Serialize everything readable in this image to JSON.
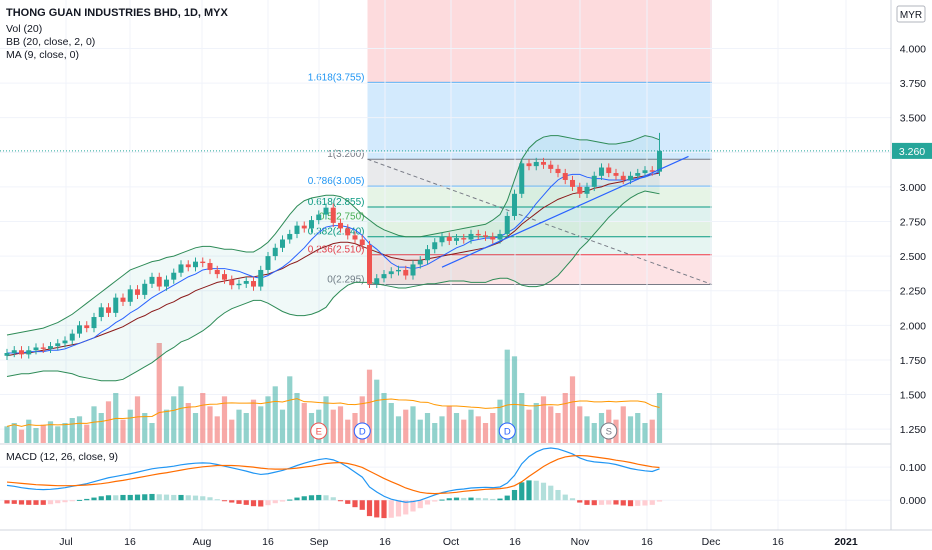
{
  "legend": {
    "title": "THONG GUAN INDUSTRIES BHD, 1D, MYX",
    "vol": "Vol (20)",
    "bb": "BB (20, close, 2, 0)",
    "ma": "MA (9, close, 0)",
    "macd": "MACD (12, 26, close, 9)"
  },
  "currency": "MYR",
  "last_price_label": "3.260",
  "colors": {
    "up": "#26a69a",
    "down": "#ef5350",
    "bb": "#2e8b57",
    "ma": "#2962ff",
    "macd_line": "#2196f3",
    "signal_line": "#ff6d00",
    "price_line": "#26a69a"
  },
  "chart_data": [
    {
      "type": "candlestick",
      "name": "price",
      "x_ticks": [
        "Jul",
        "16",
        "Aug",
        "16",
        "Sep",
        "16",
        "Oct",
        "16",
        "Nov",
        "16",
        "Dec",
        "16",
        "2021"
      ],
      "y_ticks": [
        "4.000",
        "3.750",
        "3.500",
        "3.250",
        "3.000",
        "2.750",
        "2.500",
        "2.250",
        "2.000",
        "1.750",
        "1.500",
        "1.250"
      ],
      "ylim": [
        1.15,
        4.35
      ],
      "last_price": 3.26,
      "closes": [
        1.8,
        1.82,
        1.79,
        1.82,
        1.84,
        1.83,
        1.85,
        1.87,
        1.89,
        1.94,
        2.0,
        1.98,
        2.06,
        2.13,
        2.09,
        2.2,
        2.17,
        2.26,
        2.22,
        2.3,
        2.35,
        2.28,
        2.33,
        2.38,
        2.44,
        2.42,
        2.46,
        2.45,
        2.4,
        2.37,
        2.33,
        2.29,
        2.3,
        2.32,
        2.28,
        2.4,
        2.5,
        2.56,
        2.62,
        2.66,
        2.72,
        2.7,
        2.76,
        2.8,
        2.85,
        2.74,
        2.7,
        2.65,
        2.62,
        2.58,
        2.3,
        2.34,
        2.37,
        2.39,
        2.4,
        2.36,
        2.44,
        2.47,
        2.55,
        2.6,
        2.64,
        2.61,
        2.63,
        2.62,
        2.66,
        2.65,
        2.64,
        2.62,
        2.66,
        2.79,
        2.95,
        3.17,
        3.15,
        3.18,
        3.16,
        3.13,
        3.1,
        3.05,
        3.0,
        2.95,
        3.0,
        3.08,
        3.14,
        3.1,
        3.08,
        3.05,
        3.08,
        3.1,
        3.12,
        3.11,
        3.26
      ],
      "opens": [
        1.78,
        1.8,
        1.82,
        1.79,
        1.82,
        1.84,
        1.83,
        1.85,
        1.87,
        1.89,
        1.94,
        2.0,
        1.98,
        2.06,
        2.13,
        2.09,
        2.2,
        2.17,
        2.26,
        2.22,
        2.3,
        2.35,
        2.28,
        2.33,
        2.38,
        2.44,
        2.42,
        2.46,
        2.45,
        2.4,
        2.37,
        2.33,
        2.29,
        2.3,
        2.32,
        2.28,
        2.4,
        2.5,
        2.56,
        2.62,
        2.66,
        2.72,
        2.7,
        2.76,
        2.8,
        2.85,
        2.74,
        2.7,
        2.65,
        2.62,
        2.58,
        2.3,
        2.34,
        2.37,
        2.39,
        2.4,
        2.36,
        2.44,
        2.47,
        2.55,
        2.6,
        2.64,
        2.61,
        2.63,
        2.62,
        2.66,
        2.65,
        2.64,
        2.62,
        2.66,
        2.79,
        2.95,
        3.17,
        3.15,
        3.18,
        3.16,
        3.13,
        3.1,
        3.05,
        3.0,
        2.95,
        3.0,
        3.08,
        3.14,
        3.1,
        3.08,
        3.05,
        3.08,
        3.1,
        3.12,
        3.11
      ],
      "bb_upper": [
        1.93,
        1.94,
        1.95,
        1.96,
        1.97,
        1.98,
        2.0,
        2.02,
        2.05,
        2.08,
        2.12,
        2.16,
        2.2,
        2.24,
        2.28,
        2.32,
        2.36,
        2.4,
        2.42,
        2.44,
        2.46,
        2.47,
        2.49,
        2.5,
        2.52,
        2.54,
        2.56,
        2.57,
        2.57,
        2.56,
        2.55,
        2.55,
        2.54,
        2.53,
        2.53,
        2.56,
        2.6,
        2.66,
        2.73,
        2.8,
        2.86,
        2.9,
        2.92,
        2.93,
        2.94,
        2.94,
        2.93,
        2.9,
        2.85,
        2.8,
        2.76,
        2.72,
        2.69,
        2.67,
        2.65,
        2.64,
        2.64,
        2.64,
        2.65,
        2.66,
        2.67,
        2.68,
        2.69,
        2.7,
        2.71,
        2.72,
        2.73,
        2.76,
        2.8,
        2.9,
        3.05,
        3.2,
        3.28,
        3.33,
        3.36,
        3.37,
        3.37,
        3.36,
        3.35,
        3.34,
        3.34,
        3.33,
        3.32,
        3.31,
        3.31,
        3.32,
        3.33,
        3.35,
        3.37,
        3.36,
        3.34
      ],
      "bb_mid": [
        1.78,
        1.79,
        1.8,
        1.8,
        1.81,
        1.82,
        1.83,
        1.84,
        1.85,
        1.86,
        1.87,
        1.89,
        1.91,
        1.93,
        1.95,
        1.97,
        1.99,
        2.02,
        2.05,
        2.07,
        2.1,
        2.12,
        2.15,
        2.17,
        2.2,
        2.22,
        2.25,
        2.27,
        2.29,
        2.31,
        2.32,
        2.33,
        2.34,
        2.35,
        2.35,
        2.36,
        2.37,
        2.39,
        2.41,
        2.44,
        2.46,
        2.49,
        2.52,
        2.55,
        2.57,
        2.59,
        2.6,
        2.6,
        2.59,
        2.57,
        2.55,
        2.53,
        2.51,
        2.49,
        2.48,
        2.47,
        2.47,
        2.47,
        2.48,
        2.49,
        2.5,
        2.51,
        2.52,
        2.53,
        2.54,
        2.55,
        2.56,
        2.58,
        2.6,
        2.64,
        2.68,
        2.73,
        2.77,
        2.81,
        2.85,
        2.88,
        2.91,
        2.93,
        2.95,
        2.96,
        2.97,
        2.99,
        3.0,
        3.02,
        3.03,
        3.04,
        3.06,
        3.07,
        3.08,
        3.09,
        3.1
      ],
      "bb_lower": [
        1.63,
        1.64,
        1.65,
        1.65,
        1.66,
        1.67,
        1.67,
        1.67,
        1.66,
        1.65,
        1.63,
        1.62,
        1.61,
        1.6,
        1.6,
        1.6,
        1.61,
        1.64,
        1.67,
        1.7,
        1.73,
        1.77,
        1.81,
        1.84,
        1.88,
        1.9,
        1.93,
        1.96,
        2.0,
        2.05,
        2.09,
        2.12,
        2.14,
        2.16,
        2.18,
        2.18,
        2.16,
        2.13,
        2.1,
        2.08,
        2.07,
        2.07,
        2.08,
        2.1,
        2.13,
        2.2,
        2.25,
        2.29,
        2.31,
        2.31,
        2.31,
        2.3,
        2.29,
        2.28,
        2.27,
        2.27,
        2.28,
        2.29,
        2.3,
        2.3,
        2.31,
        2.32,
        2.32,
        2.32,
        2.31,
        2.31,
        2.31,
        2.33,
        2.34,
        2.34,
        2.32,
        2.29,
        2.28,
        2.28,
        2.29,
        2.32,
        2.36,
        2.42,
        2.48,
        2.55,
        2.6,
        2.66,
        2.72,
        2.78,
        2.83,
        2.88,
        2.92,
        2.95,
        2.97,
        2.96,
        2.95
      ],
      "ma9": [
        1.8,
        1.8,
        1.8,
        1.81,
        1.81,
        1.81,
        1.82,
        1.82,
        1.83,
        1.85,
        1.87,
        1.89,
        1.91,
        1.95,
        1.98,
        2.02,
        2.05,
        2.09,
        2.12,
        2.16,
        2.2,
        2.23,
        2.26,
        2.29,
        2.32,
        2.35,
        2.37,
        2.4,
        2.41,
        2.41,
        2.41,
        2.4,
        2.39,
        2.37,
        2.35,
        2.34,
        2.36,
        2.39,
        2.42,
        2.46,
        2.51,
        2.56,
        2.62,
        2.67,
        2.71,
        2.72,
        2.72,
        2.71,
        2.69,
        2.65,
        2.59,
        2.55,
        2.5,
        2.45,
        2.42,
        2.42,
        2.41,
        2.42,
        2.44,
        2.47,
        2.5,
        2.53,
        2.56,
        2.58,
        2.61,
        2.62,
        2.63,
        2.63,
        2.64,
        2.67,
        2.7,
        2.75,
        2.81,
        2.88,
        2.94,
        3.0,
        3.05,
        3.08,
        3.09,
        3.09,
        3.07,
        3.06,
        3.06,
        3.05,
        3.05,
        3.05,
        3.05,
        3.06,
        3.07,
        3.09,
        3.11
      ],
      "volume": [
        10,
        12,
        8,
        14,
        9,
        11,
        13,
        10,
        12,
        15,
        16,
        11,
        22,
        18,
        25,
        30,
        14,
        20,
        28,
        18,
        12,
        60,
        20,
        28,
        34,
        24,
        18,
        30,
        22,
        16,
        28,
        14,
        20,
        18,
        26,
        22,
        28,
        34,
        20,
        40,
        30,
        24,
        18,
        20,
        28,
        20,
        22,
        14,
        18,
        28,
        44,
        38,
        30,
        24,
        16,
        20,
        22,
        14,
        18,
        12,
        16,
        22,
        18,
        14,
        20,
        16,
        12,
        18,
        26,
        56,
        52,
        30,
        20,
        24,
        28,
        22,
        18,
        30,
        40,
        22,
        16,
        12,
        18,
        20,
        14,
        22,
        16,
        18,
        12,
        14,
        30
      ],
      "fib_levels": [
        {
          "ratio": 1.618,
          "value": 3.755,
          "label": "1.618(3.755)"
        },
        {
          "ratio": 1,
          "value": 3.2,
          "label": "1(3.200)"
        },
        {
          "ratio": 0.786,
          "value": 3.005,
          "label": "0.786(3.005)"
        },
        {
          "ratio": 0.618,
          "value": 2.855,
          "label": "0.618(2.855)"
        },
        {
          "ratio": 0.5,
          "value": 2.75,
          "label": "0.5(2.750)"
        },
        {
          "ratio": 0.382,
          "value": 2.64,
          "label": "0.382(2.640)"
        },
        {
          "ratio": 0.236,
          "value": 2.51,
          "label": "0.236(2.510)"
        },
        {
          "ratio": 0,
          "value": 2.295,
          "label": "0(2.295)"
        }
      ],
      "events": [
        {
          "bar": 43,
          "label": "E"
        },
        {
          "bar": 49,
          "label": "D"
        },
        {
          "bar": 69,
          "label": "D"
        },
        {
          "bar": 83,
          "label": "S"
        }
      ]
    },
    {
      "type": "macd",
      "name": "MACD (12, 26, close, 9)",
      "y_ticks": [
        "0.100",
        "0.000"
      ],
      "ylim": [
        -0.09,
        0.17
      ],
      "macd": [
        0.045,
        0.042,
        0.038,
        0.035,
        0.033,
        0.032,
        0.033,
        0.035,
        0.038,
        0.042,
        0.046,
        0.05,
        0.056,
        0.062,
        0.068,
        0.072,
        0.076,
        0.08,
        0.085,
        0.09,
        0.095,
        0.098,
        0.1,
        0.103,
        0.107,
        0.11,
        0.112,
        0.113,
        0.112,
        0.108,
        0.103,
        0.098,
        0.093,
        0.088,
        0.082,
        0.078,
        0.08,
        0.085,
        0.09,
        0.097,
        0.105,
        0.112,
        0.118,
        0.123,
        0.126,
        0.122,
        0.113,
        0.1,
        0.085,
        0.07,
        0.04,
        0.025,
        0.012,
        0.003,
        -0.002,
        -0.006,
        -0.004,
        0.0,
        0.008,
        0.016,
        0.023,
        0.028,
        0.032,
        0.034,
        0.037,
        0.038,
        0.039,
        0.038,
        0.04,
        0.052,
        0.075,
        0.11,
        0.132,
        0.146,
        0.155,
        0.158,
        0.155,
        0.148,
        0.14,
        0.128,
        0.12,
        0.116,
        0.114,
        0.112,
        0.108,
        0.102,
        0.096,
        0.092,
        0.089,
        0.087,
        0.095
      ],
      "signal": [
        0.055,
        0.053,
        0.051,
        0.049,
        0.047,
        0.046,
        0.045,
        0.044,
        0.044,
        0.044,
        0.045,
        0.046,
        0.048,
        0.05,
        0.053,
        0.057,
        0.06,
        0.064,
        0.068,
        0.072,
        0.076,
        0.08,
        0.083,
        0.087,
        0.091,
        0.095,
        0.098,
        0.101,
        0.103,
        0.105,
        0.105,
        0.105,
        0.104,
        0.102,
        0.1,
        0.097,
        0.095,
        0.094,
        0.094,
        0.095,
        0.097,
        0.1,
        0.103,
        0.107,
        0.111,
        0.113,
        0.114,
        0.111,
        0.106,
        0.099,
        0.088,
        0.077,
        0.066,
        0.056,
        0.047,
        0.037,
        0.03,
        0.024,
        0.021,
        0.02,
        0.021,
        0.022,
        0.024,
        0.027,
        0.029,
        0.031,
        0.033,
        0.034,
        0.035,
        0.038,
        0.044,
        0.056,
        0.072,
        0.087,
        0.102,
        0.114,
        0.124,
        0.131,
        0.134,
        0.135,
        0.134,
        0.131,
        0.128,
        0.125,
        0.121,
        0.118,
        0.114,
        0.109,
        0.105,
        0.101,
        0.099
      ]
    }
  ]
}
